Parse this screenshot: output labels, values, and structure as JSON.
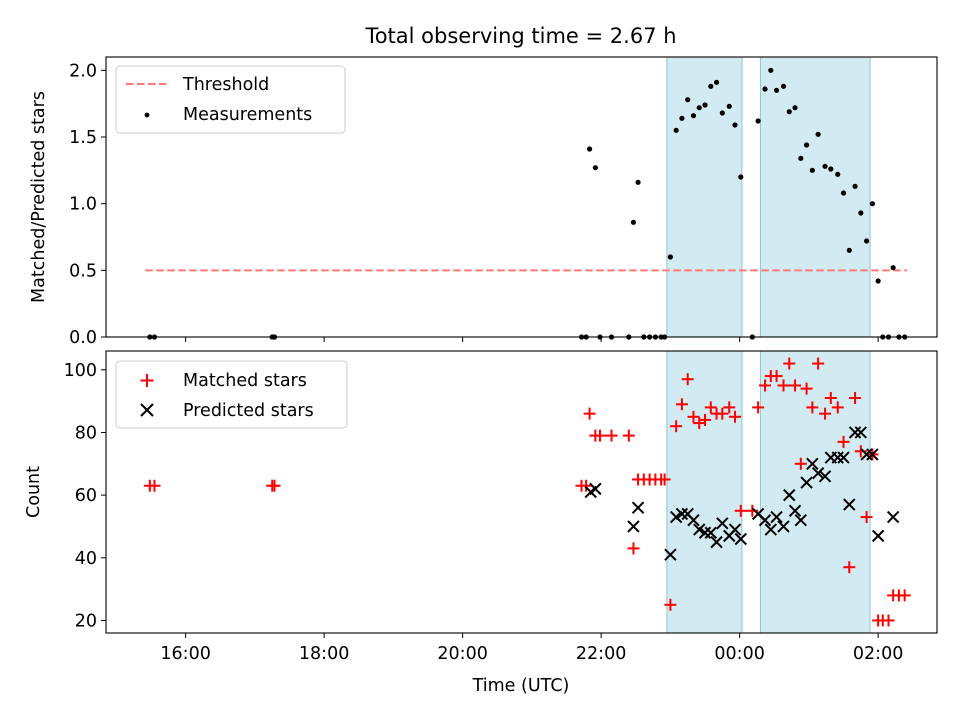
{
  "title": "Total observing time = 2.67 h",
  "xlabel": "Time (UTC)",
  "xticks": [
    {
      "h": 16,
      "label": "16:00"
    },
    {
      "h": 18,
      "label": "18:00"
    },
    {
      "h": 20,
      "label": "20:00"
    },
    {
      "h": 22,
      "label": "22:00"
    },
    {
      "h": 24,
      "label": "00:00"
    },
    {
      "h": 26,
      "label": "02:00"
    }
  ],
  "colors": {
    "threshold": "#ff7777",
    "measurements": "#000000",
    "matched": "#ff0000",
    "predicted": "#000000",
    "shade": "#add8e6"
  },
  "chart_data": [
    {
      "type": "scatter",
      "ylabel": "Matched/Predicted stars",
      "xlim_hours": [
        14.85,
        26.85
      ],
      "ylim": [
        0,
        2.1
      ],
      "yticks": [
        {
          "v": 0.0,
          "label": "0.0"
        },
        {
          "v": 0.5,
          "label": "0.5"
        },
        {
          "v": 1.0,
          "label": "1.0"
        },
        {
          "v": 1.5,
          "label": "1.5"
        },
        {
          "v": 2.0,
          "label": "2.0"
        }
      ],
      "legend": {
        "position": "upper-left",
        "threshold_label": "Threshold",
        "measurements_label": "Measurements"
      },
      "threshold": {
        "y": 0.5,
        "x_start": "15:25",
        "x_end": "02:25"
      },
      "shaded_intervals": [
        [
          "22:57",
          "00:02"
        ],
        [
          "00:18",
          "01:53"
        ]
      ],
      "measurements": [
        [
          "15:29",
          0.0
        ],
        [
          "15:33",
          0.0
        ],
        [
          "17:15",
          0.0
        ],
        [
          "17:17",
          0.0
        ],
        [
          "21:43",
          0.0
        ],
        [
          "21:47",
          0.0
        ],
        [
          "21:50",
          1.41
        ],
        [
          "21:55",
          1.27
        ],
        [
          "21:59",
          0.0
        ],
        [
          "22:09",
          0.0
        ],
        [
          "22:24",
          0.0
        ],
        [
          "22:28",
          0.86
        ],
        [
          "22:32",
          1.16
        ],
        [
          "22:37",
          0.0
        ],
        [
          "22:42",
          0.0
        ],
        [
          "22:47",
          0.0
        ],
        [
          "22:52",
          0.0
        ],
        [
          "22:55",
          0.0
        ],
        [
          "23:00",
          0.6
        ],
        [
          "23:05",
          1.55
        ],
        [
          "23:10",
          1.64
        ],
        [
          "23:15",
          1.78
        ],
        [
          "23:20",
          1.66
        ],
        [
          "23:25",
          1.72
        ],
        [
          "23:30",
          1.74
        ],
        [
          "23:35",
          1.88
        ],
        [
          "23:40",
          1.91
        ],
        [
          "23:45",
          1.68
        ],
        [
          "23:51",
          1.73
        ],
        [
          "23:56",
          1.59
        ],
        [
          "00:01",
          1.2
        ],
        [
          "00:11",
          0.0
        ],
        [
          "00:16",
          1.62
        ],
        [
          "00:22",
          1.86
        ],
        [
          "00:27",
          2.0
        ],
        [
          "00:32",
          1.85
        ],
        [
          "00:38",
          1.88
        ],
        [
          "00:43",
          1.69
        ],
        [
          "00:48",
          1.72
        ],
        [
          "00:53",
          1.34
        ],
        [
          "00:58",
          1.44
        ],
        [
          "01:03",
          1.25
        ],
        [
          "01:08",
          1.52
        ],
        [
          "01:14",
          1.28
        ],
        [
          "01:19",
          1.26
        ],
        [
          "01:25",
          1.22
        ],
        [
          "01:30",
          1.08
        ],
        [
          "01:35",
          0.65
        ],
        [
          "01:40",
          1.13
        ],
        [
          "01:45",
          0.93
        ],
        [
          "01:50",
          0.72
        ],
        [
          "01:55",
          1.0
        ],
        [
          "02:00",
          0.42
        ],
        [
          "02:04",
          0.0
        ],
        [
          "02:09",
          0.0
        ],
        [
          "02:13",
          0.52
        ],
        [
          "02:18",
          0.0
        ],
        [
          "02:23",
          0.0
        ]
      ]
    },
    {
      "type": "scatter",
      "ylabel": "Count",
      "xlim_hours": [
        14.85,
        26.85
      ],
      "ylim": [
        16,
        106
      ],
      "yticks": [
        {
          "v": 20,
          "label": "20"
        },
        {
          "v": 40,
          "label": "40"
        },
        {
          "v": 60,
          "label": "60"
        },
        {
          "v": 80,
          "label": "80"
        },
        {
          "v": 100,
          "label": "100"
        }
      ],
      "legend": {
        "position": "upper-left",
        "matched_label": "Matched stars",
        "predicted_label": "Predicted stars"
      },
      "shaded_intervals": [
        [
          "22:57",
          "00:02"
        ],
        [
          "00:18",
          "01:53"
        ]
      ],
      "matched": [
        [
          "15:29",
          63
        ],
        [
          "15:33",
          63
        ],
        [
          "17:15",
          63
        ],
        [
          "17:17",
          63
        ],
        [
          "21:43",
          63
        ],
        [
          "21:47",
          63
        ],
        [
          "21:50",
          86
        ],
        [
          "21:55",
          79
        ],
        [
          "21:59",
          79
        ],
        [
          "22:09",
          79
        ],
        [
          "22:24",
          79
        ],
        [
          "22:28",
          43
        ],
        [
          "22:32",
          65
        ],
        [
          "22:37",
          65
        ],
        [
          "22:42",
          65
        ],
        [
          "22:47",
          65
        ],
        [
          "22:52",
          65
        ],
        [
          "22:55",
          65
        ],
        [
          "23:00",
          25
        ],
        [
          "23:05",
          82
        ],
        [
          "23:10",
          89
        ],
        [
          "23:15",
          97
        ],
        [
          "23:20",
          85
        ],
        [
          "23:25",
          83
        ],
        [
          "23:30",
          84
        ],
        [
          "23:35",
          88
        ],
        [
          "23:40",
          86
        ],
        [
          "23:45",
          86
        ],
        [
          "23:51",
          88
        ],
        [
          "23:56",
          85
        ],
        [
          "00:01",
          55
        ],
        [
          "00:11",
          55
        ],
        [
          "00:16",
          88
        ],
        [
          "00:22",
          95
        ],
        [
          "00:27",
          98
        ],
        [
          "00:32",
          98
        ],
        [
          "00:38",
          95
        ],
        [
          "00:43",
          102
        ],
        [
          "00:48",
          95
        ],
        [
          "00:53",
          70
        ],
        [
          "00:58",
          94
        ],
        [
          "01:03",
          88
        ],
        [
          "01:08",
          102
        ],
        [
          "01:14",
          86
        ],
        [
          "01:19",
          91
        ],
        [
          "01:25",
          88
        ],
        [
          "01:30",
          77
        ],
        [
          "01:35",
          37
        ],
        [
          "01:40",
          91
        ],
        [
          "01:45",
          74
        ],
        [
          "01:50",
          53
        ],
        [
          "01:55",
          73
        ],
        [
          "02:00",
          20
        ],
        [
          "02:04",
          20
        ],
        [
          "02:09",
          20
        ],
        [
          "02:13",
          28
        ],
        [
          "02:18",
          28
        ],
        [
          "02:23",
          28
        ]
      ],
      "predicted": [
        [
          "21:51",
          61
        ],
        [
          "21:55",
          62
        ],
        [
          "22:28",
          50
        ],
        [
          "22:32",
          56
        ],
        [
          "23:00",
          41
        ],
        [
          "23:05",
          53
        ],
        [
          "23:10",
          54
        ],
        [
          "23:15",
          54
        ],
        [
          "23:20",
          52
        ],
        [
          "23:25",
          49
        ],
        [
          "23:30",
          48
        ],
        [
          "23:35",
          48
        ],
        [
          "23:40",
          45
        ],
        [
          "23:45",
          51
        ],
        [
          "23:51",
          47
        ],
        [
          "23:56",
          49
        ],
        [
          "00:01",
          46
        ],
        [
          "00:16",
          54
        ],
        [
          "00:22",
          52
        ],
        [
          "00:27",
          49
        ],
        [
          "00:32",
          53
        ],
        [
          "00:38",
          50
        ],
        [
          "00:43",
          60
        ],
        [
          "00:48",
          55
        ],
        [
          "00:53",
          52
        ],
        [
          "00:58",
          64
        ],
        [
          "01:03",
          70
        ],
        [
          "01:08",
          67
        ],
        [
          "01:14",
          66
        ],
        [
          "01:19",
          72
        ],
        [
          "01:25",
          72
        ],
        [
          "01:30",
          72
        ],
        [
          "01:35",
          57
        ],
        [
          "01:40",
          80
        ],
        [
          "01:45",
          80
        ],
        [
          "01:50",
          73
        ],
        [
          "01:55",
          73
        ],
        [
          "02:00",
          47
        ],
        [
          "02:13",
          53
        ]
      ]
    }
  ]
}
